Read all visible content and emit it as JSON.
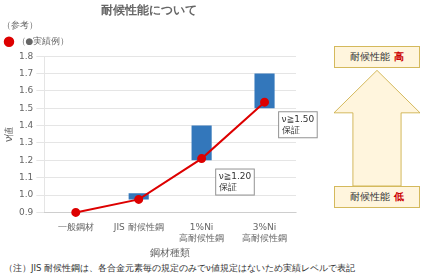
{
  "chart_data": {
    "type": "bar",
    "title": "耐候性能について",
    "subtitle": "（参考）",
    "categories": [
      "一般鋼材",
      "JIS 耐候性鋼",
      "1%Ni\n高耐候性鋼",
      "3%Ni\n高耐候性鋼"
    ],
    "series": [
      {
        "type": "bar",
        "color": "#3377bb",
        "values": [
          null,
          [
            0.975,
            1.01
          ],
          [
            1.2,
            1.4
          ],
          [
            1.5,
            1.7
          ]
        ]
      },
      {
        "name": "（●実績例）",
        "type": "line",
        "color": "#dd0000",
        "marker": "circle",
        "values": [
          0.9,
          0.975,
          1.21,
          1.535
        ]
      }
    ],
    "ylim": [
      0.9,
      1.8
    ],
    "yticks": [
      0.9,
      {
        "value": 1.0,
        "label": "1.0"
      },
      1.1,
      1.2,
      1.3,
      1.4,
      1.5,
      1.6,
      1.7,
      1.8
    ],
    "ylabel": "ν値",
    "xlabel": "鋼材種類",
    "grid": "y",
    "legend": "upper left",
    "annotations": [
      {
        "text": "ν≧1.20\n保証",
        "x": "1%Ni\n高耐候性鋼",
        "y": 1.075
      },
      {
        "text": "ν≧1.50\n保証",
        "x": "3%Ni\n高耐候性鋼",
        "y": 1.405
      },
      {
        "text": [
          "耐候性能",
          "高"
        ],
        "color": "#cc0000"
      },
      {
        "text": [
          "耐候性能",
          "低"
        ],
        "color": "#cc0000"
      },
      {
        "text": "（注）JIS 耐候性鋼は、各合金元素毎の規定のみでν値規定はないため実績レベルで表記"
      }
    ]
  }
}
